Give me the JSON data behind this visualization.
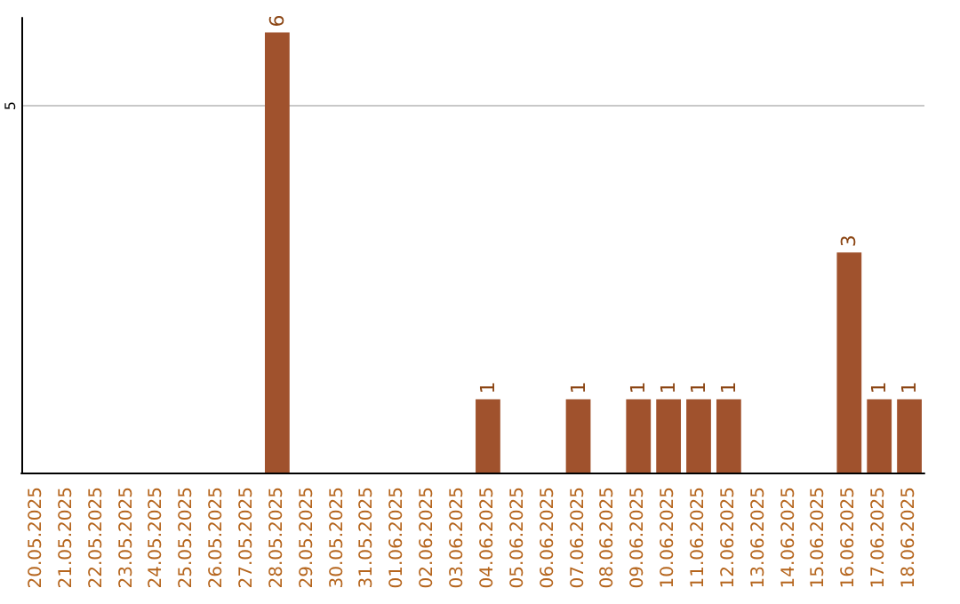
{
  "chart_data": {
    "type": "bar",
    "categories": [
      "20.05.2025",
      "21.05.2025",
      "22.05.2025",
      "23.05.2025",
      "24.05.2025",
      "25.05.2025",
      "26.05.2025",
      "27.05.2025",
      "28.05.2025",
      "29.05.2025",
      "30.05.2025",
      "31.05.2025",
      "01.06.2025",
      "02.06.2025",
      "03.06.2025",
      "04.06.2025",
      "05.06.2025",
      "06.06.2025",
      "07.06.2025",
      "08.06.2025",
      "09.06.2025",
      "10.06.2025",
      "11.06.2025",
      "12.06.2025",
      "13.06.2025",
      "14.06.2025",
      "15.06.2025",
      "16.06.2025",
      "17.06.2025",
      "18.06.2025"
    ],
    "values": [
      0,
      0,
      0,
      0,
      0,
      0,
      0,
      0,
      6,
      0,
      0,
      0,
      0,
      0,
      0,
      1,
      0,
      0,
      1,
      0,
      1,
      1,
      1,
      1,
      0,
      0,
      0,
      3,
      1,
      1
    ],
    "value_labels": [
      null,
      null,
      null,
      null,
      null,
      null,
      null,
      null,
      "6",
      null,
      null,
      null,
      null,
      null,
      null,
      "1",
      null,
      null,
      "1",
      null,
      "1",
      "1",
      "1",
      "1",
      null,
      null,
      null,
      "3",
      "1",
      "1"
    ],
    "color": "#a0522d",
    "ylim": [
      0,
      6.2
    ],
    "yticks": [
      5
    ],
    "grid": "y"
  }
}
